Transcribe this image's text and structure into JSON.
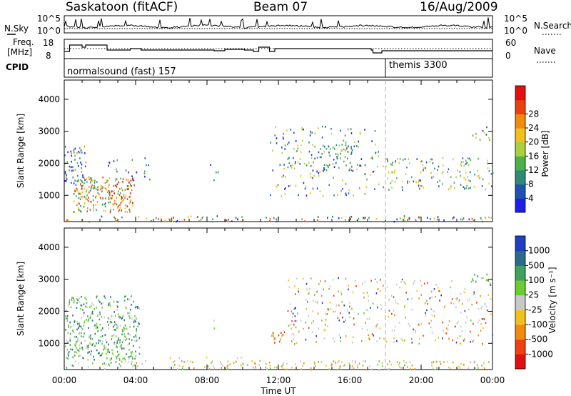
{
  "header": {
    "site": "Saskatoon (fitACF)",
    "beam": "Beam 07",
    "date": "16/Aug/2009"
  },
  "top_panels": {
    "nsky": {
      "label": "N.Sky",
      "tick_top": "10^5",
      "tick_bottom": "10^0",
      "right_label": "N.Search",
      "right_tick_top": "10^5",
      "right_tick_bottom": "10^0"
    },
    "freq": {
      "label_line1": "Freq.",
      "label_line2": "[MHz]",
      "tick_top": "18",
      "tick_bottom": "8",
      "right_label": "Nave",
      "right_tick_top": "60",
      "right_tick_bottom": "0"
    },
    "cpid": {
      "label": "CPID",
      "programs": [
        {
          "name": "normalsound (fast) 157",
          "start_hour": 0
        },
        {
          "name": "themis 3300",
          "start_hour": 18
        }
      ]
    }
  },
  "power_colorbar": {
    "label": "Power [dB]",
    "ticks": [
      "4",
      "8",
      "12",
      "16",
      "20",
      "24",
      "28"
    ],
    "colors": [
      "#1f1fe6",
      "#2050b0",
      "#2f8a78",
      "#4db04a",
      "#a8d040",
      "#f0c020",
      "#f08a10",
      "#e84010",
      "#e01010"
    ]
  },
  "velocity_colorbar": {
    "label": "Velocity [m s⁻¹]",
    "ticks": [
      "1000",
      "500",
      "100",
      "25",
      "-25",
      "-100",
      "-500",
      "-1000"
    ],
    "colors": [
      "#1f3fc0",
      "#2a6a8a",
      "#3fa060",
      "#6ccd30",
      "#c8c8c8",
      "#f0c020",
      "#f08a10",
      "#ee4010",
      "#e01010"
    ]
  },
  "chart_data": [
    {
      "type": "heatmap",
      "title": "",
      "ylabel": "Slant Range [km]",
      "xlabel": "",
      "ylim": [
        180,
        4600
      ],
      "xlim_hours": [
        0,
        24
      ],
      "yticks": [
        1000,
        2000,
        3000,
        4000
      ],
      "quantity": "Power [dB]",
      "scatter_regions": [
        {
          "t": [
            0.0,
            3.9
          ],
          "range": [
            500,
            2700
          ],
          "value": "12-28 dB, strongest near 04:00"
        },
        {
          "t": [
            11.6,
            17.5
          ],
          "range": [
            1000,
            3200
          ],
          "value": "8-20 dB"
        },
        {
          "t": [
            17.8,
            24.0
          ],
          "range": [
            1200,
            2200
          ],
          "value": "12-20 dB"
        },
        {
          "t": [
            0.0,
            24.0
          ],
          "range": [
            200,
            400
          ],
          "value": "near ground scatter band"
        }
      ]
    },
    {
      "type": "heatmap",
      "title": "",
      "ylabel": "Slant Range [km]",
      "xlabel": "Time UT",
      "ylim": [
        180,
        4600
      ],
      "xlim_hours": [
        0,
        24
      ],
      "yticks": [
        1000,
        2000,
        3000,
        4000
      ],
      "xticks": [
        "00:00",
        "04:00",
        "08:00",
        "12:00",
        "16:00",
        "20:00",
        "00:00"
      ],
      "quantity": "Velocity [m s^-1]",
      "scatter_regions": [
        {
          "t": [
            0.0,
            4.2
          ],
          "range": [
            500,
            2500
          ],
          "value": "100 to 500 m/s"
        },
        {
          "t": [
            11.6,
            12.3
          ],
          "range": [
            1000,
            1400
          ],
          "value": "-100 to -500 m/s"
        },
        {
          "t": [
            12.5,
            24.0
          ],
          "range": [
            1000,
            3100
          ],
          "value": "-25 to 25 m/s"
        },
        {
          "t": [
            4.0,
            20.0
          ],
          "range": [
            200,
            500
          ],
          "value": "-25 to -100 m/s"
        }
      ]
    }
  ]
}
